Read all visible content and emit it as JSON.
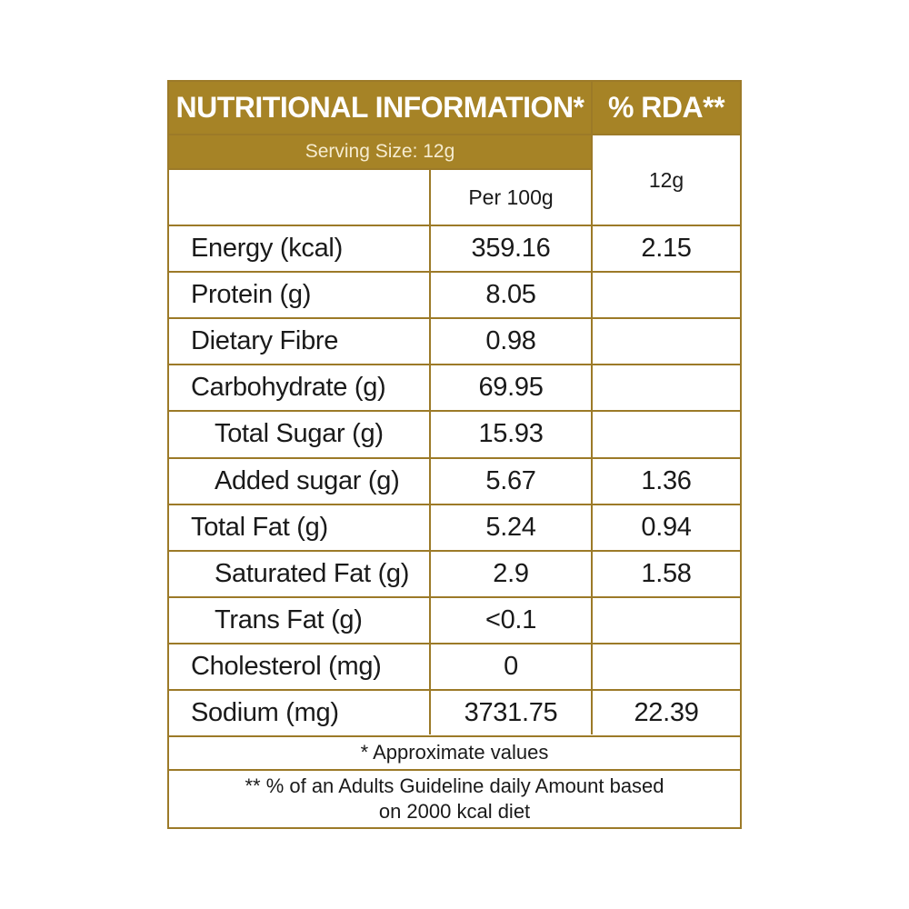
{
  "header": {
    "title": "NUTRITIONAL INFORMATION*",
    "rda_title": "% RDA**",
    "serving_size": "Serving Size:  12g",
    "per_100g": "Per  100g",
    "rda_serving": "12g"
  },
  "rows": [
    {
      "label": "Energy (kcal)",
      "per100": "359.16",
      "rda": "2.15"
    },
    {
      "label": "Protein (g)",
      "per100": "8.05",
      "rda": ""
    },
    {
      "label": "Dietary Fibre",
      "per100": "0.98",
      "rda": ""
    },
    {
      "label": "Carbohydrate (g)",
      "per100": "69.95",
      "rda": ""
    },
    {
      "label": "Total Sugar (g)",
      "per100": "15.93",
      "rda": ""
    },
    {
      "label": "Added sugar (g)",
      "per100": "5.67",
      "rda": "1.36"
    },
    {
      "label": "Total Fat (g)",
      "per100": "5.24",
      "rda": "0.94"
    },
    {
      "label": "Saturated Fat (g)",
      "per100": "2.9",
      "rda": "1.58"
    },
    {
      "label": "Trans Fat (g)",
      "per100": "<0.1",
      "rda": ""
    },
    {
      "label": "Cholesterol (mg)",
      "per100": "0",
      "rda": ""
    },
    {
      "label": "Sodium (mg)",
      "per100": "3731.75",
      "rda": "22.39"
    }
  ],
  "footnotes": {
    "approx": "* Approximate values",
    "rda_line1": "** % of an Adults Guideline daily Amount based",
    "rda_line2": "on 2000 kcal diet"
  },
  "colors": {
    "gold": "#a68326",
    "border": "#9c7a28"
  }
}
